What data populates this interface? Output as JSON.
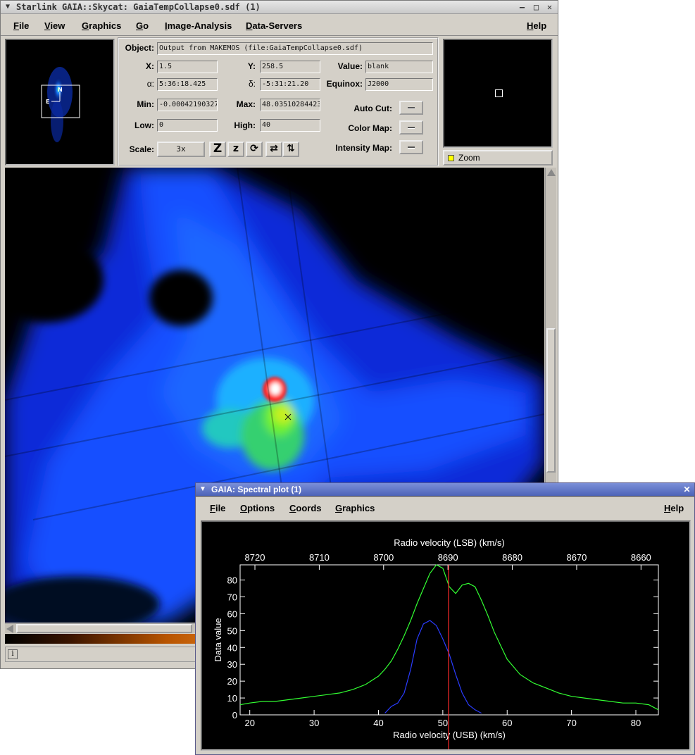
{
  "main_window": {
    "title": "Starlink GAIA::Skycat: GaiaTempCollapse0.sdf (1)",
    "menu": [
      "File",
      "View",
      "Graphics",
      "Go",
      "Image-Analysis",
      "Data-Servers"
    ],
    "help": "Help",
    "info": {
      "object_label": "Object:",
      "object_value": "Output from MAKEMOS (file:GaiaTempCollapse0.sdf)",
      "x_label": "X:",
      "x_value": "1.5",
      "y_label": "Y:",
      "y_value": "258.5",
      "value_label": "Value:",
      "value_value": "blank",
      "alpha_label": "α:",
      "alpha_value": "5:36:18.425",
      "delta_label": "δ:",
      "delta_value": "-5:31:21.20",
      "equinox_label": "Equinox:",
      "equinox_value": "J2000",
      "min_label": "Min:",
      "min_value": "-0.00042190327",
      "max_label": "Max:",
      "max_value": "48.03510284423",
      "autocut_label": "Auto Cut:",
      "low_label": "Low:",
      "low_value": "0",
      "high_label": "High:",
      "high_value": "40",
      "colormap_label": "Color Map:",
      "scale_label": "Scale:",
      "scale_value": "3x",
      "intensitymap_label": "Intensity Map:"
    },
    "tools": [
      "Z",
      "z",
      "⟳",
      "⇄",
      "⇅"
    ],
    "zoom_label": "Zoom",
    "compass": {
      "north": "N",
      "east": "E"
    },
    "status_icon": "i"
  },
  "icons": {
    "window_menu": "chevron-down-icon",
    "minimize": "minimize-icon",
    "maximize": "maximize-icon",
    "close": "close-icon",
    "info": "info-icon"
  },
  "plot_window": {
    "title": "GAIA: Spectral plot (1)",
    "menu": [
      "File",
      "Options",
      "Coords",
      "Graphics"
    ],
    "help": "Help"
  },
  "chart_data": {
    "type": "line",
    "xlabel": "Radio velocity (USB) (km/s)",
    "x2label": "Radio velocity (LSB) (km/s)",
    "ylabel": "Data value",
    "xlim": [
      18.5,
      83.5
    ],
    "ylim": [
      0,
      89
    ],
    "xticks": [
      20,
      30,
      40,
      50,
      60,
      70,
      80
    ],
    "yticks": [
      0,
      10,
      20,
      30,
      40,
      50,
      60,
      70,
      80
    ],
    "x2lim": [
      8722.3,
      8657.3
    ],
    "x2ticks": [
      8720,
      8710,
      8700,
      8690,
      8680,
      8670,
      8660
    ],
    "grid": false,
    "reference_line_x": 50.9,
    "colors": {
      "green": "#32ff32",
      "blue": "#2a3cff",
      "ref": "#ff2a2a",
      "axes": "#ffffff"
    },
    "series": [
      {
        "color": "#32ff32",
        "x": [
          18.5,
          20,
          22,
          24,
          26,
          28,
          30,
          32,
          34,
          36,
          38,
          40,
          41,
          42,
          43,
          44,
          45,
          46,
          47,
          48,
          49,
          50,
          51,
          52,
          53,
          54,
          55,
          56,
          57,
          58,
          59,
          60,
          62,
          64,
          66,
          68,
          70,
          72,
          74,
          76,
          78,
          80,
          82,
          83.5
        ],
        "y": [
          6,
          7,
          8,
          8,
          9,
          10,
          11,
          12,
          13,
          15,
          18,
          23,
          27,
          32,
          39,
          47,
          56,
          66,
          75,
          84,
          89,
          87,
          76,
          72,
          77,
          78,
          76,
          68,
          59,
          49,
          41,
          33,
          24,
          19,
          16,
          13,
          11,
          10,
          9,
          8,
          7,
          7,
          6,
          3
        ]
      },
      {
        "color": "#2a3cff",
        "x": [
          41,
          42,
          43,
          44,
          45,
          46,
          47,
          48,
          49,
          50,
          51,
          52,
          53,
          54,
          55,
          56
        ],
        "y": [
          1,
          5,
          7,
          13,
          27,
          45,
          54,
          56,
          53,
          45,
          36,
          24,
          13,
          6,
          3,
          1
        ]
      }
    ]
  }
}
